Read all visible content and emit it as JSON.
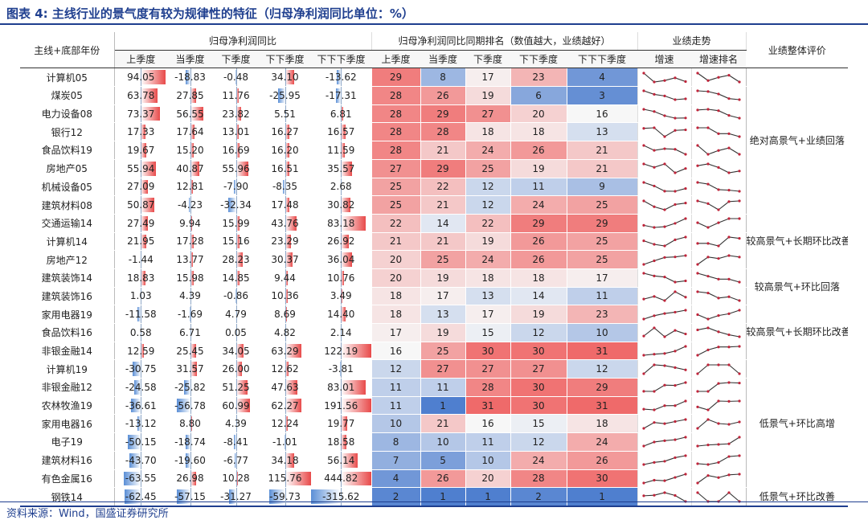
{
  "title": "图表 4: 主线行业的景气度有较为规律性的特征（归母净利润同比单位：%）",
  "source": "资料来源：Wind，国盛证券研究所",
  "headers": {
    "corner": "主线+底部年份",
    "group_yoy": "归母净利润同比",
    "group_rank": "归母净利润同比同期排名（数值越大，业绩越好）",
    "group_trend": "业绩走势",
    "eval": "业绩整体评价",
    "periods": [
      "上季度",
      "当季度",
      "下季度",
      "下下季度",
      "下下下季度"
    ],
    "rank_periods": [
      "上季度",
      "当季度",
      "下季度",
      "下下季度",
      "下下下季度"
    ],
    "trend_cols": [
      "增速",
      "增速排名"
    ]
  },
  "rows": [
    {
      "label": "计算机05",
      "yoy": [
        "94.05",
        "-18.83",
        "-0.48",
        "34.10",
        "-13.62"
      ],
      "yoy_num": [
        94.05,
        -18.83,
        -0.48,
        34.1,
        -13.62
      ],
      "ranks": [
        29,
        8,
        17,
        23,
        4
      ]
    },
    {
      "label": "煤炭05",
      "yoy": [
        "63.78",
        "27.85",
        "11.76",
        "-25.95",
        "-17.31"
      ],
      "yoy_num": [
        63.78,
        27.85,
        11.76,
        -25.95,
        -17.31
      ],
      "ranks": [
        28,
        26,
        19,
        6,
        3
      ]
    },
    {
      "label": "电力设备08",
      "yoy": [
        "73.37",
        "56.55",
        "23.82",
        "5.51",
        "6.81"
      ],
      "yoy_num": [
        73.37,
        56.55,
        23.82,
        5.51,
        6.81
      ],
      "ranks": [
        28,
        29,
        27,
        20,
        16
      ]
    },
    {
      "label": "银行12",
      "yoy": [
        "17.33",
        "17.64",
        "13.01",
        "16.27",
        "16.57"
      ],
      "yoy_num": [
        17.33,
        17.64,
        13.01,
        16.27,
        16.57
      ],
      "ranks": [
        28,
        28,
        18,
        18,
        13
      ]
    },
    {
      "label": "食品饮料19",
      "yoy": [
        "19.67",
        "15.20",
        "16.69",
        "16.20",
        "11.59"
      ],
      "yoy_num": [
        19.67,
        15.2,
        16.69,
        16.2,
        11.59
      ],
      "ranks": [
        28,
        21,
        24,
        26,
        21
      ]
    },
    {
      "label": "房地产05",
      "yoy": [
        "55.94",
        "40.87",
        "55.96",
        "16.51",
        "35.57"
      ],
      "yoy_num": [
        55.94,
        40.87,
        55.96,
        16.51,
        35.57
      ],
      "ranks": [
        27,
        29,
        25,
        19,
        21
      ]
    },
    {
      "label": "机械设备05",
      "yoy": [
        "27.09",
        "12.81",
        "-7.90",
        "-8.35",
        "2.68"
      ],
      "yoy_num": [
        27.09,
        12.81,
        -7.9,
        -8.35,
        2.68
      ],
      "ranks": [
        25,
        22,
        12,
        11,
        9
      ]
    },
    {
      "label": "建筑材料08",
      "yoy": [
        "50.87",
        "-4.23",
        "-32.34",
        "17.48",
        "30.82"
      ],
      "yoy_num": [
        50.87,
        -4.23,
        -32.34,
        17.48,
        30.82
      ],
      "ranks": [
        25,
        21,
        12,
        24,
        25
      ]
    },
    {
      "label": "交通运输14",
      "yoy": [
        "27.49",
        "9.94",
        "15.99",
        "43.76",
        "83.18"
      ],
      "yoy_num": [
        27.49,
        9.94,
        15.99,
        43.76,
        83.18
      ],
      "ranks": [
        22,
        14,
        22,
        29,
        29
      ]
    },
    {
      "label": "计算机14",
      "yoy": [
        "21.95",
        "17.28",
        "15.16",
        "23.29",
        "26.92"
      ],
      "yoy_num": [
        21.95,
        17.28,
        15.16,
        23.29,
        26.92
      ],
      "ranks": [
        21,
        21,
        19,
        26,
        25
      ]
    },
    {
      "label": "房地产12",
      "yoy": [
        "-1.44",
        "13.77",
        "28.23",
        "30.37",
        "36.04"
      ],
      "yoy_num": [
        -1.44,
        13.77,
        28.23,
        30.37,
        36.04
      ],
      "ranks": [
        20,
        25,
        24,
        26,
        25
      ]
    },
    {
      "label": "建筑装饰14",
      "yoy": [
        "18.83",
        "15.98",
        "14.85",
        "9.44",
        "10.76"
      ],
      "yoy_num": [
        18.83,
        15.98,
        14.85,
        9.44,
        10.76
      ],
      "ranks": [
        20,
        19,
        18,
        18,
        17
      ]
    },
    {
      "label": "建筑装饰16",
      "yoy": [
        "1.03",
        "4.39",
        "-0.86",
        "10.36",
        "3.49"
      ],
      "yoy_num": [
        1.03,
        4.39,
        -0.86,
        10.36,
        3.49
      ],
      "ranks": [
        18,
        17,
        13,
        14,
        11
      ]
    },
    {
      "label": "家用电器19",
      "yoy": [
        "-11.58",
        "-1.69",
        "4.79",
        "8.69",
        "14.40"
      ],
      "yoy_num": [
        -11.58,
        -1.69,
        4.79,
        8.69,
        14.4
      ],
      "ranks": [
        18,
        13,
        17,
        19,
        23
      ]
    },
    {
      "label": "食品饮料16",
      "yoy": [
        "0.58",
        "6.71",
        "0.05",
        "4.82",
        "2.14"
      ],
      "yoy_num": [
        0.58,
        6.71,
        0.05,
        4.82,
        2.14
      ],
      "ranks": [
        17,
        19,
        15,
        12,
        10
      ]
    },
    {
      "label": "非银金融14",
      "yoy": [
        "12.59",
        "25.45",
        "34.05",
        "63.29",
        "122.19"
      ],
      "yoy_num": [
        12.59,
        25.45,
        34.05,
        63.29,
        122.19
      ],
      "ranks": [
        16,
        25,
        30,
        30,
        31
      ]
    },
    {
      "label": "计算机19",
      "yoy": [
        "-30.75",
        "31.57",
        "26.00",
        "12.62",
        "-3.81"
      ],
      "yoy_num": [
        -30.75,
        31.57,
        26.0,
        12.62,
        -3.81
      ],
      "ranks": [
        12,
        27,
        27,
        27,
        12
      ]
    },
    {
      "label": "非银金融12",
      "yoy": [
        "-24.58",
        "-25.82",
        "51.25",
        "47.63",
        "83.01"
      ],
      "yoy_num": [
        -24.58,
        -25.82,
        51.25,
        47.63,
        83.01
      ],
      "ranks": [
        11,
        11,
        28,
        30,
        29
      ]
    },
    {
      "label": "农林牧渔19",
      "yoy": [
        "-36.61",
        "-56.78",
        "60.99",
        "62.27",
        "191.56"
      ],
      "yoy_num": [
        -36.61,
        -56.78,
        60.99,
        62.27,
        191.56
      ],
      "ranks": [
        11,
        1,
        31,
        30,
        31
      ]
    },
    {
      "label": "家用电器16",
      "yoy": [
        "-13.12",
        "8.80",
        "4.39",
        "12.24",
        "19.77"
      ],
      "yoy_num": [
        -13.12,
        8.8,
        4.39,
        12.24,
        19.77
      ],
      "ranks": [
        10,
        21,
        16,
        15,
        18
      ]
    },
    {
      "label": "电子19",
      "yoy": [
        "-50.15",
        "-18.74",
        "-8.41",
        "-1.01",
        "18.58"
      ],
      "yoy_num": [
        -50.15,
        -18.74,
        -8.41,
        -1.01,
        18.58
      ],
      "ranks": [
        8,
        10,
        11,
        12,
        24
      ]
    },
    {
      "label": "建筑材料16",
      "yoy": [
        "-43.70",
        "-19.60",
        "-6.77",
        "34.18",
        "56.14"
      ],
      "yoy_num": [
        -43.7,
        -19.6,
        -6.77,
        34.18,
        56.14
      ],
      "ranks": [
        7,
        5,
        10,
        24,
        26
      ]
    },
    {
      "label": "有色金属16",
      "yoy": [
        "-63.55",
        "26.98",
        "10.28",
        "115.76",
        "444.82"
      ],
      "yoy_num": [
        -63.55,
        26.98,
        10.28,
        115.76,
        444.82
      ],
      "ranks": [
        4,
        26,
        20,
        28,
        30
      ]
    },
    {
      "label": "钢铁14",
      "yoy": [
        "-62.45",
        "-57.15",
        "-31.27",
        "-59.73",
        "-315.62"
      ],
      "yoy_num": [
        -62.45,
        -57.15,
        -31.27,
        -59.73,
        -315.62
      ],
      "ranks": [
        2,
        1,
        1,
        2,
        1
      ]
    }
  ],
  "evaluations": [
    {
      "text": "绝对高景气+业绩回落",
      "rows": 8
    },
    {
      "text": "较高景气+长期环比改善",
      "rows": 3
    },
    {
      "text": "较高景气+环比回落",
      "rows": 2
    },
    {
      "text": "较高景气+长期环比改善",
      "rows": 3
    },
    {
      "text": "低景气+环比高增",
      "rows": 7
    },
    {
      "text": "低景气+环比改善",
      "rows": 1
    }
  ],
  "colors": {
    "accent": "#1f3f8f",
    "bar_pos": "#e84a4a",
    "bar_neg": "#5b8fd6",
    "rank_high": "#ef6a6a",
    "rank_mid": "#f7f7f7",
    "rank_low": "#4f7fcf",
    "spark_line": "#333333",
    "spark_dot": "#c0243a"
  },
  "scale": {
    "bar_cap": 100,
    "rank_min": 1,
    "rank_max": 31,
    "rank_mid": 16
  }
}
